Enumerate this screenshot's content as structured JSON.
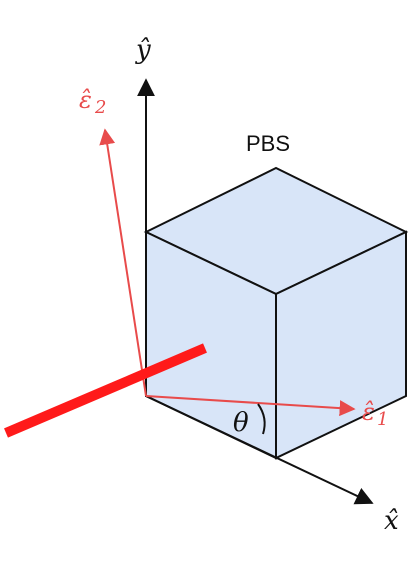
{
  "diagram": {
    "title": "PBS",
    "axes": {
      "y_label": "ŷ",
      "x_label": "x̂"
    },
    "polarization": {
      "e1_label": "ε̂",
      "e1_subscript": "1",
      "e2_label": "ε̂",
      "e2_subscript": "2",
      "angle_label": "θ"
    },
    "colors": {
      "cube_fill": "#d8e5f8",
      "cube_edge": "#111111",
      "axis": "#111111",
      "polarization": "#e84b4b",
      "beam": "#ff1a1a"
    }
  }
}
